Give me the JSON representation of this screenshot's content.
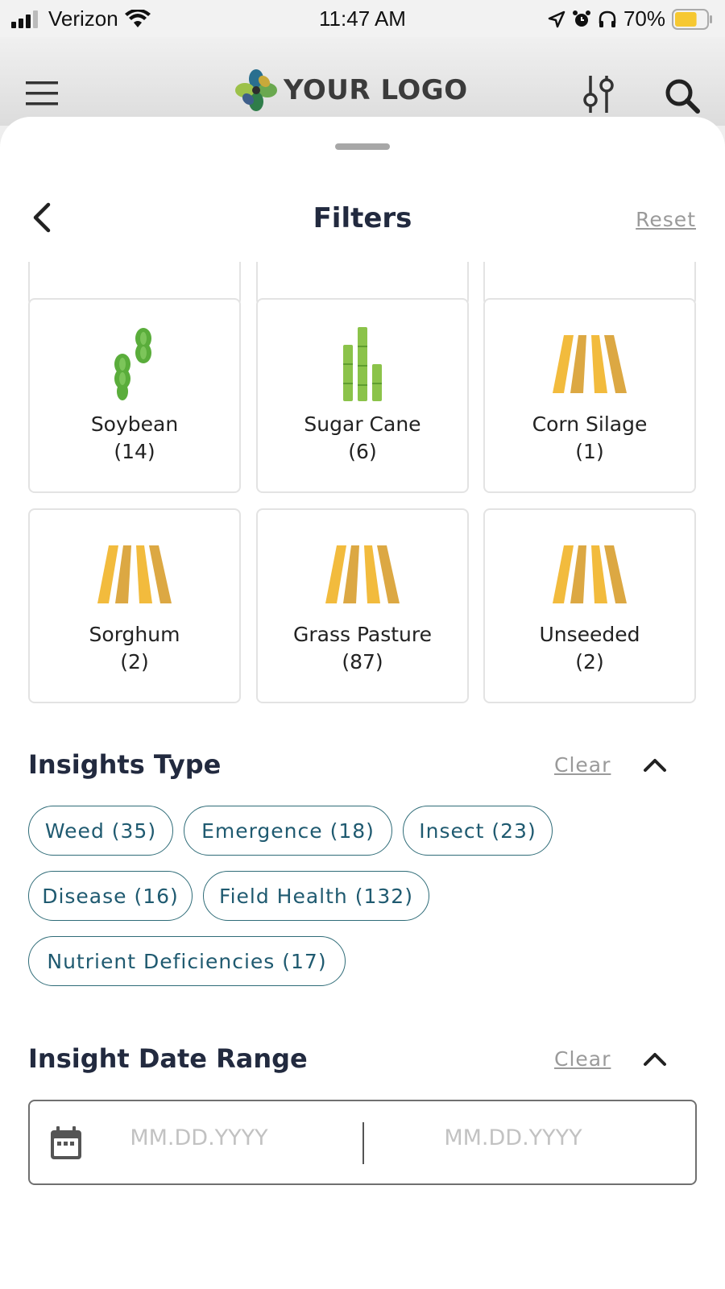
{
  "status_bar": {
    "carrier": "Verizon",
    "time": "11:47 AM",
    "battery": "70%",
    "battery_level": 0.7
  },
  "header": {
    "logo_text": "YOUR LOGO",
    "menu_icon": "hamburger-menu-icon",
    "filter_icon": "sliders-icon",
    "search_icon": "search-icon"
  },
  "sheet": {
    "title": "Filters",
    "reset_label": "Reset"
  },
  "crops": [
    {
      "name": "Soybean",
      "count": "(14)",
      "icon": "soybean-icon"
    },
    {
      "name": "Sugar Cane",
      "count": "(6)",
      "icon": "sugar-cane-icon"
    },
    {
      "name": "Corn Silage",
      "count": "(1)",
      "icon": "field-rows-icon"
    },
    {
      "name": "Sorghum",
      "count": "(2)",
      "icon": "field-rows-icon"
    },
    {
      "name": "Grass Pasture",
      "count": "(87)",
      "icon": "field-rows-icon"
    },
    {
      "name": "Unseeded",
      "count": "(2)",
      "icon": "field-rows-icon"
    }
  ],
  "insights_type": {
    "title": "Insights Type",
    "clear_label": "Clear",
    "chips": [
      "Weed (35)",
      "Emergence (18)",
      "Insect (23)",
      "Disease (16)",
      "Field Health (132)",
      "Nutrient Deficiencies (17)"
    ]
  },
  "insight_date_range": {
    "title": "Insight Date Range",
    "clear_label": "Clear",
    "start_placeholder": "MM.DD.YYYY",
    "end_placeholder": "MM.DD.YYYY"
  },
  "colors": {
    "heading": "#222a3f",
    "chip_border": "#2f6c78",
    "chip_text": "#1f5a70",
    "field_yellow": "#f2bb3d",
    "field_yellow_dark": "#dca843",
    "soy_green": "#5aad3b",
    "cane_green": "#8bc34a"
  }
}
